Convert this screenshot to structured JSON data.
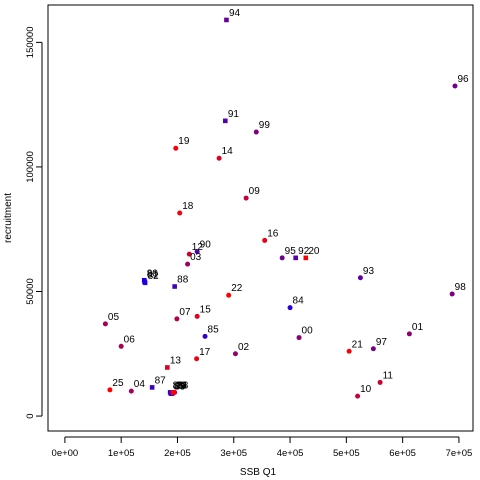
{
  "chart_data": {
    "type": "scatter",
    "title": "",
    "xlabel": "SSB Q1",
    "ylabel": "recruitment",
    "xlim": [
      -30000,
      725000
    ],
    "ylim": [
      -6000,
      165000
    ],
    "x_ticks": [
      0,
      100000,
      200000,
      300000,
      400000,
      500000,
      600000,
      700000
    ],
    "x_tick_labels": [
      "0e+00",
      "1e+05",
      "2e+05",
      "3e+05",
      "4e+05",
      "5e+05",
      "6e+05",
      "7e+05"
    ],
    "y_ticks": [
      0,
      50000,
      100000,
      150000
    ],
    "y_tick_labels": [
      "0",
      "50000",
      "100000",
      "150000"
    ],
    "grid": false,
    "legend": "none",
    "colors": {
      "early": "#0000ff",
      "late": "#ff0000"
    },
    "points": [
      {
        "label": "80",
        "x": 141000,
        "y": 54500,
        "color": "#1200ed",
        "shape": "square"
      },
      {
        "label": "81",
        "x": 141500,
        "y": 54000,
        "color": "#1800e7",
        "shape": "square"
      },
      {
        "label": "82",
        "x": 142500,
        "y": 53500,
        "color": "#1e00e1",
        "shape": "square"
      },
      {
        "label": "83",
        "x": 187000,
        "y": 9500,
        "color": "#2400db",
        "shape": "square"
      },
      {
        "label": "84",
        "x": 400000,
        "y": 43500,
        "color": "#2a00d5",
        "shape": "circle"
      },
      {
        "label": "85",
        "x": 249000,
        "y": 32000,
        "color": "#3000cf",
        "shape": "circle"
      },
      {
        "label": "86",
        "x": 188500,
        "y": 9000,
        "color": "#3600c9",
        "shape": "square"
      },
      {
        "label": "87",
        "x": 155000,
        "y": 11500,
        "color": "#3c00c3",
        "shape": "square"
      },
      {
        "label": "88",
        "x": 195000,
        "y": 52000,
        "color": "#4200bd",
        "shape": "square"
      },
      {
        "label": "89",
        "x": 190500,
        "y": 9000,
        "color": "#4800b7",
        "shape": "square"
      },
      {
        "label": "90",
        "x": 235000,
        "y": 66000,
        "color": "#4e00b1",
        "shape": "circle"
      },
      {
        "label": "91",
        "x": 285000,
        "y": 118500,
        "color": "#5400ab",
        "shape": "square"
      },
      {
        "label": "92",
        "x": 410000,
        "y": 63500,
        "color": "#5a00a5",
        "shape": "square"
      },
      {
        "label": "93",
        "x": 525000,
        "y": 55500,
        "color": "#60009f",
        "shape": "circle"
      },
      {
        "label": "94",
        "x": 287000,
        "y": 159000,
        "color": "#660099",
        "shape": "square"
      },
      {
        "label": "95",
        "x": 386000,
        "y": 63500,
        "color": "#6c0093",
        "shape": "circle"
      },
      {
        "label": "96",
        "x": 693000,
        "y": 132500,
        "color": "#72008d",
        "shape": "circle"
      },
      {
        "label": "97",
        "x": 548000,
        "y": 27000,
        "color": "#780087",
        "shape": "circle"
      },
      {
        "label": "98",
        "x": 688000,
        "y": 49000,
        "color": "#7e0081",
        "shape": "circle"
      },
      {
        "label": "99",
        "x": 340000,
        "y": 114000,
        "color": "#84007b",
        "shape": "circle"
      },
      {
        "label": "00",
        "x": 416000,
        "y": 31500,
        "color": "#8a0075",
        "shape": "circle"
      },
      {
        "label": "01",
        "x": 612000,
        "y": 33000,
        "color": "#90006f",
        "shape": "circle"
      },
      {
        "label": "02",
        "x": 303000,
        "y": 25000,
        "color": "#960069",
        "shape": "circle"
      },
      {
        "label": "03",
        "x": 218000,
        "y": 61000,
        "color": "#9c0063",
        "shape": "circle"
      },
      {
        "label": "04",
        "x": 118000,
        "y": 10000,
        "color": "#a2005d",
        "shape": "circle"
      },
      {
        "label": "05",
        "x": 72000,
        "y": 37000,
        "color": "#a80057",
        "shape": "circle"
      },
      {
        "label": "06",
        "x": 100000,
        "y": 28000,
        "color": "#ae0051",
        "shape": "circle"
      },
      {
        "label": "07",
        "x": 199000,
        "y": 39000,
        "color": "#b4004b",
        "shape": "circle"
      },
      {
        "label": "08",
        "x": 195000,
        "y": 9500,
        "color": "#ba0045",
        "shape": "circle"
      },
      {
        "label": "09",
        "x": 322000,
        "y": 87500,
        "color": "#c0003f",
        "shape": "circle"
      },
      {
        "label": "10",
        "x": 520000,
        "y": 8000,
        "color": "#c60039",
        "shape": "circle"
      },
      {
        "label": "11",
        "x": 560000,
        "y": 13500,
        "color": "#cc0033",
        "shape": "circle"
      },
      {
        "label": "12",
        "x": 221000,
        "y": 65000,
        "color": "#d2002d",
        "shape": "circle"
      },
      {
        "label": "13",
        "x": 182000,
        "y": 19500,
        "color": "#d80027",
        "shape": "square"
      },
      {
        "label": "14",
        "x": 274000,
        "y": 103500,
        "color": "#de0021",
        "shape": "circle"
      },
      {
        "label": "15",
        "x": 235000,
        "y": 40000,
        "color": "#e4001b",
        "shape": "circle"
      },
      {
        "label": "16",
        "x": 355000,
        "y": 70500,
        "color": "#ea0015",
        "shape": "circle"
      },
      {
        "label": "17",
        "x": 234000,
        "y": 23000,
        "color": "#f0000f",
        "shape": "circle"
      },
      {
        "label": "18",
        "x": 204000,
        "y": 81500,
        "color": "#f20009",
        "shape": "circle"
      },
      {
        "label": "19",
        "x": 197000,
        "y": 107500,
        "color": "#f40006",
        "shape": "circle"
      },
      {
        "label": "20",
        "x": 428000,
        "y": 63500,
        "color": "#f60004",
        "shape": "square"
      },
      {
        "label": "21",
        "x": 505000,
        "y": 26000,
        "color": "#f80003",
        "shape": "circle"
      },
      {
        "label": "22",
        "x": 291000,
        "y": 48500,
        "color": "#fa0002",
        "shape": "circle"
      },
      {
        "label": "23",
        "x": 192000,
        "y": 9500,
        "color": "#fc0001",
        "shape": "square"
      },
      {
        "label": "24",
        "x": 193000,
        "y": 9500,
        "color": "#fd0000",
        "shape": "square"
      },
      {
        "label": "25",
        "x": 80000,
        "y": 10500,
        "color": "#ff0000",
        "shape": "circle"
      }
    ]
  }
}
